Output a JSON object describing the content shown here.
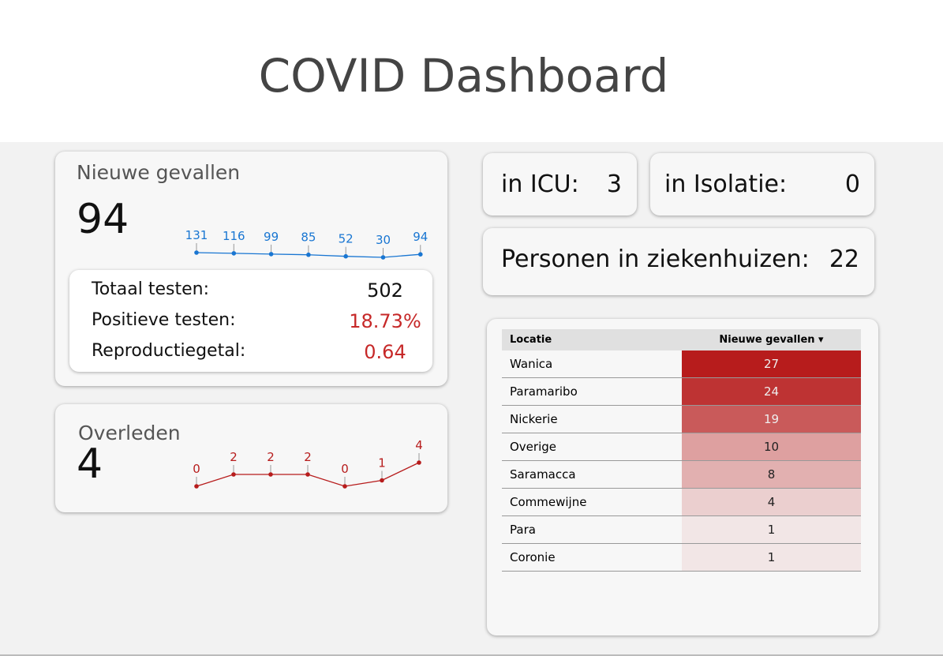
{
  "header": {
    "title": "COVID Dashboard"
  },
  "new_cases": {
    "title": "Nieuwe gevallen",
    "value": 94,
    "sparkline": [
      131,
      116,
      99,
      85,
      52,
      30,
      94
    ],
    "color": "#1976d2",
    "tests": [
      {
        "label": "Totaal testen:",
        "value": 502
      },
      {
        "label": "Positieve testen:",
        "value": "18.73%"
      },
      {
        "label": "Reproductiegetal:",
        "value": 0.64
      }
    ]
  },
  "deaths": {
    "title": "Overleden",
    "value": 4,
    "sparkline": [
      0,
      2,
      2,
      2,
      0,
      1,
      4
    ],
    "color": "#b71c1c"
  },
  "icu": {
    "label": "in ICU:",
    "value": 3
  },
  "isolation": {
    "label": "in Isolatie:",
    "value": 0
  },
  "hospital": {
    "label": "Personen in ziekenhuizen:",
    "value": 22
  },
  "table": {
    "columns": [
      "Locatie",
      "Nieuwe gevallen"
    ],
    "rows": [
      [
        "Wanica",
        27
      ],
      [
        "Paramaribo",
        24
      ],
      [
        "Nickerie",
        19
      ],
      [
        "Overige",
        10
      ],
      [
        "Saramacca",
        8
      ],
      [
        "Commewijne",
        4
      ],
      [
        "Para",
        1
      ],
      [
        "Coronie",
        1
      ]
    ]
  }
}
